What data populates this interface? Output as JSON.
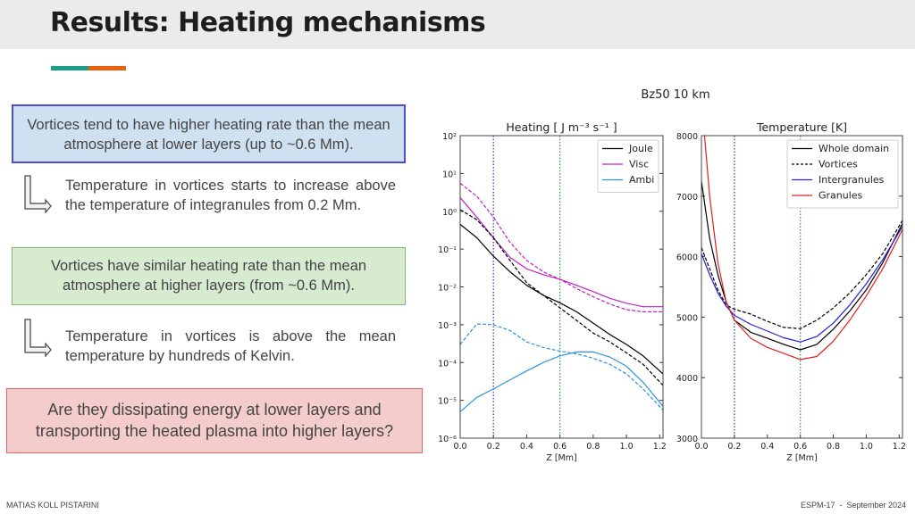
{
  "header": {
    "title": "Results: Heating mechanisms"
  },
  "accent_colors": [
    "#1a9c8a",
    "#e8620f"
  ],
  "boxes": {
    "blue": "Vortices tend to have higher heating rate than the mean atmosphere at lower layers (up to ~0.6 Mm).",
    "green": "Vortices have similar heating rate than the mean atmosphere at higher layers (from ~0.6 Mm).",
    "red": "Are they dissipating energy at lower layers and transporting the heated plasma into higher layers?"
  },
  "notes": [
    "Temperature in vortices starts to increase above the temperature of integranules from 0.2 Mm.",
    "Temperature in vortices is above the mean temperature by hundreds of Kelvin."
  ],
  "figure_title": "Bz50 10 km",
  "footer": {
    "author": "MATIAS KOLL PISTARINI",
    "event": "ESPM-17  -  September 2024"
  },
  "chart_data": [
    {
      "type": "line",
      "title": "Heating [ J m⁻³ s⁻¹ ]",
      "xlabel": "Z [Mm]",
      "ylabel": "",
      "xlim": [
        0,
        1.22
      ],
      "ylim": [
        1e-06,
        100
      ],
      "yscale": "log",
      "xticks": [
        "0.0",
        "0.2",
        "0.4",
        "0.6",
        "0.8",
        "1.0",
        "1.2"
      ],
      "yticks": [
        "10²",
        "10¹",
        "10⁰",
        "10⁻¹",
        "10⁻²",
        "10⁻³",
        "10⁻⁴",
        "10⁻⁵",
        "10⁻⁶"
      ],
      "vlines": [
        {
          "x": 0.2,
          "color": "#3030d0"
        },
        {
          "x": 0.6,
          "color": "#30a030"
        }
      ],
      "legend": "top-right",
      "x": [
        0,
        0.1,
        0.2,
        0.3,
        0.4,
        0.5,
        0.6,
        0.7,
        0.8,
        0.9,
        1.0,
        1.1,
        1.22
      ],
      "series": [
        {
          "name": "Joule",
          "color": "#000000",
          "dash": false,
          "values": [
            0.45,
            0.2,
            0.065,
            0.025,
            0.011,
            0.006,
            0.0038,
            0.0022,
            0.0011,
            0.00055,
            0.0003,
            0.00015,
            5e-05
          ]
        },
        {
          "name": "Visc",
          "color": "#c020c0",
          "dash": false,
          "values": [
            2.3,
            0.7,
            0.2,
            0.06,
            0.03,
            0.021,
            0.016,
            0.011,
            0.0075,
            0.005,
            0.0037,
            0.003,
            0.003
          ]
        },
        {
          "name": "Ambi",
          "color": "#3090e0",
          "dash": false,
          "values": [
            5e-06,
            1.2e-05,
            2e-05,
            3.5e-05,
            6e-05,
            0.0001,
            0.00015,
            0.00019,
            0.00019,
            0.00014,
            8e-05,
            3e-05,
            7e-06
          ]
        },
        {
          "name": "",
          "color": "#000000",
          "dash": true,
          "values": [
            1.1,
            0.6,
            0.2,
            0.05,
            0.013,
            0.006,
            0.0028,
            0.0013,
            0.0006,
            0.00035,
            0.00018,
            9e-05,
            2.5e-05
          ]
        },
        {
          "name": "",
          "color": "#c020c0",
          "dash": true,
          "values": [
            5.5,
            2.5,
            0.7,
            0.15,
            0.05,
            0.025,
            0.016,
            0.009,
            0.0055,
            0.0035,
            0.0025,
            0.0022,
            0.0022
          ]
        },
        {
          "name": "",
          "color": "#3090e0",
          "dash": true,
          "values": [
            0.0003,
            0.00105,
            0.001,
            0.0007,
            0.00035,
            0.00025,
            0.0002,
            0.00017,
            0.00013,
            9e-05,
            5e-05,
            2e-05,
            5.5e-06
          ]
        }
      ]
    },
    {
      "type": "line",
      "title": "Temperature [K]",
      "xlabel": "Z [Mm]",
      "ylabel": "",
      "xlim": [
        0,
        1.22
      ],
      "ylim": [
        3000,
        8000
      ],
      "xticks": [
        "0.0",
        "0.2",
        "0.4",
        "0.6",
        "0.8",
        "1.0",
        "1.2"
      ],
      "yticks": [
        "8000",
        "7000",
        "6000",
        "5000",
        "4000",
        "3000"
      ],
      "vlines": [
        {
          "x": 0.2,
          "color": "#3030d0"
        },
        {
          "x": 0.6,
          "color": "#30a030"
        }
      ],
      "legend": "top-right",
      "x": [
        0,
        0.05,
        0.1,
        0.15,
        0.2,
        0.3,
        0.4,
        0.5,
        0.6,
        0.7,
        0.8,
        0.9,
        1.0,
        1.1,
        1.22
      ],
      "series": [
        {
          "name": "Whole domain",
          "color": "#000000",
          "dash": false,
          "values": [
            7250,
            6300,
            5700,
            5250,
            4950,
            4750,
            4650,
            4550,
            4460,
            4550,
            4800,
            5100,
            5450,
            5900,
            6550
          ]
        },
        {
          "name": "Vortices",
          "color": "#000000",
          "dash": true,
          "values": [
            6150,
            5800,
            5450,
            5200,
            5130,
            5050,
            4930,
            4830,
            4810,
            4950,
            5150,
            5400,
            5700,
            6050,
            6600
          ]
        },
        {
          "name": "Intergranules",
          "color": "#2020e0",
          "dash": false,
          "values": [
            6050,
            5700,
            5400,
            5180,
            5030,
            4880,
            4770,
            4660,
            4590,
            4680,
            4900,
            5200,
            5550,
            5950,
            6500
          ]
        },
        {
          "name": "Granules",
          "color": "#e02020",
          "dash": false,
          "values": [
            8600,
            7000,
            5900,
            5250,
            4950,
            4650,
            4500,
            4400,
            4300,
            4350,
            4600,
            4950,
            5350,
            5800,
            6450
          ]
        }
      ]
    }
  ]
}
